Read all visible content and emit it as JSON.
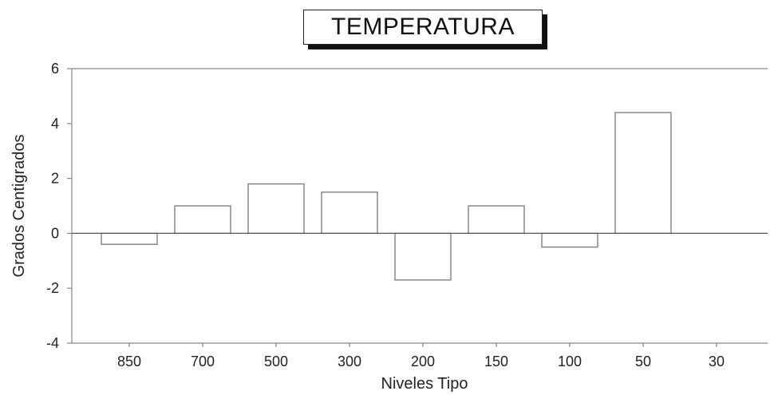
{
  "chart_data": {
    "type": "bar",
    "title": "TEMPERATURA",
    "xlabel": "Niveles Tipo",
    "ylabel": "Grados Centigrados",
    "categories": [
      "850",
      "700",
      "500",
      "300",
      "200",
      "150",
      "100",
      "50",
      "30"
    ],
    "values": [
      -0.4,
      1.0,
      1.8,
      1.5,
      -1.7,
      1.0,
      -0.5,
      4.4,
      0
    ],
    "ylim": [
      -4,
      6
    ],
    "yticks": [
      "6",
      "4",
      "2",
      "0",
      "-2",
      "-4"
    ],
    "grid": false,
    "legend": "none",
    "colors": {
      "bar_fill": "#ffffff",
      "bar_stroke": "#777777",
      "axis": "#888888",
      "text": "#222222"
    }
  }
}
